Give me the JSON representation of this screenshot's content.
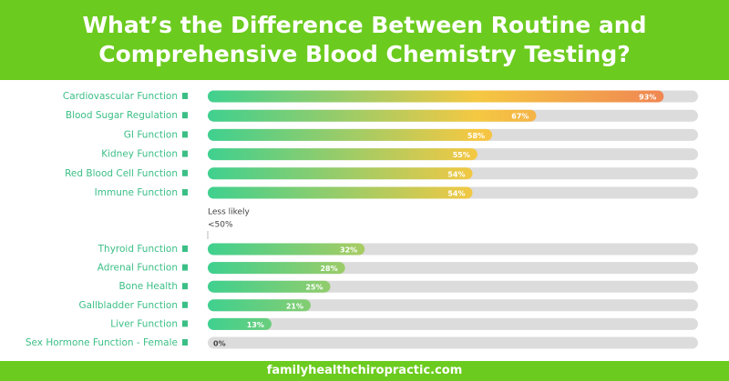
{
  "chart_data": {
    "type": "bar",
    "orientation": "horizontal",
    "title": "What’s the Difference Between Routine and Comprehensive Blood Chemistry Testing?",
    "categories": [
      "Cardiovascular Function",
      "Blood Sugar Regulation",
      "GI Function",
      "Kidney Function",
      "Red Blood Cell Function",
      "Immune Function",
      "Thyroid Function",
      "Adrenal Function",
      "Bone Health",
      "Gallbladder Function",
      "Liver Function",
      "Sex Hormone Function - Female"
    ],
    "values": [
      93,
      67,
      58,
      55,
      54,
      54,
      32,
      28,
      25,
      21,
      13,
      0
    ],
    "value_labels": [
      "93%",
      "67%",
      "58%",
      "55%",
      "54%",
      "54%",
      "32%",
      "28%",
      "25%",
      "21%",
      "13%",
      "0%"
    ],
    "xlim": [
      0,
      100
    ],
    "colors": [
      "#3fd08f",
      "#f5c842",
      "#ef7a55"
    ],
    "track_color": "#dcdcdc",
    "annotations": [
      "Less likely",
      "<50%"
    ],
    "source": "familyhealthchiropractic.com"
  }
}
